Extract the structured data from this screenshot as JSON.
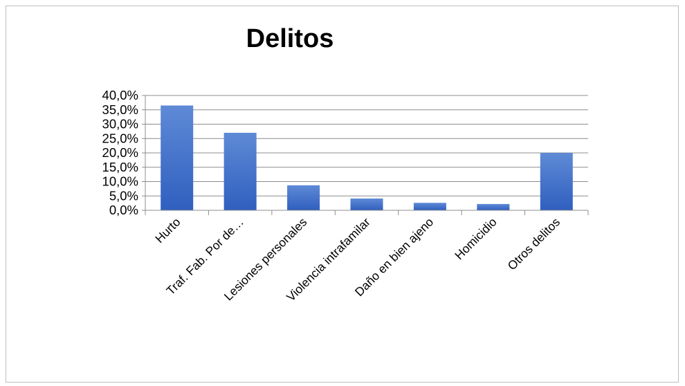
{
  "chart_data": {
    "type": "bar",
    "title": "Delitos",
    "xlabel": "",
    "ylabel": "",
    "categories": [
      "Hurto",
      "Traf. Fab. Por de…",
      "Lesiones personales",
      "Violencia intrafamilar",
      "Daño en bien ajeno",
      "Homicidio",
      "Otros delitos"
    ],
    "values": [
      36.5,
      27.0,
      8.7,
      4.1,
      2.6,
      2.2,
      20.0
    ],
    "ylim": [
      0,
      40
    ],
    "yticks": [
      0,
      5,
      10,
      15,
      20,
      25,
      30,
      35,
      40
    ],
    "ytick_labels": [
      "0,0%",
      "5,0%",
      "10,0%",
      "15,0%",
      "20,0%",
      "25,0%",
      "30,0%",
      "35,0%",
      "40,0%"
    ],
    "grid": true,
    "legend": "none",
    "colors": {
      "bar_top": "#5f8ad6",
      "bar_bottom": "#2f5fbf",
      "grid": "#8c8c8c",
      "axis": "#8c8c8c"
    }
  }
}
